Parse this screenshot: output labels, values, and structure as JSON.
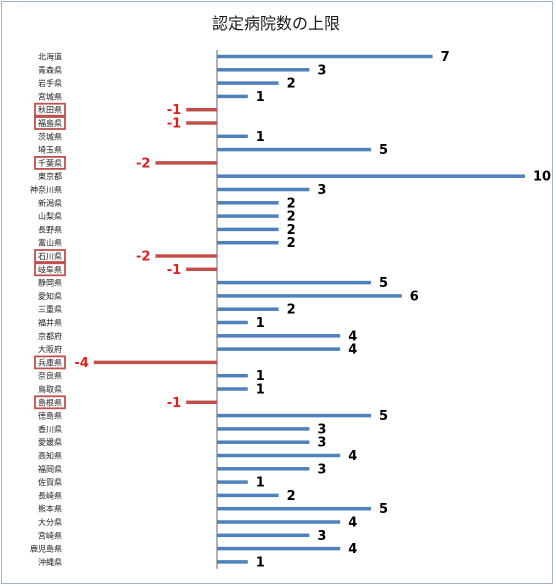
{
  "chart_data": {
    "type": "bar",
    "orientation": "horizontal",
    "title": "認定病院数の上限",
    "categories": [
      "北海道",
      "青森県",
      "岩手県",
      "宮城県",
      "秋田県",
      "福島県",
      "茨城県",
      "埼玉県",
      "千葉県",
      "東京都",
      "神奈川県",
      "新潟県",
      "山梨県",
      "長野県",
      "富山県",
      "石川県",
      "岐阜県",
      "静岡県",
      "愛知県",
      "三重県",
      "福井県",
      "京都府",
      "大阪府",
      "兵庫県",
      "奈良県",
      "鳥取県",
      "島根県",
      "徳島県",
      "香川県",
      "愛媛県",
      "高知県",
      "福岡県",
      "佐賀県",
      "長崎県",
      "熊本県",
      "大分県",
      "宮崎県",
      "鹿児島県",
      "沖縄県"
    ],
    "values": [
      7,
      3,
      2,
      1,
      -1,
      -1,
      1,
      5,
      -2,
      10,
      3,
      2,
      2,
      2,
      2,
      -2,
      -1,
      5,
      6,
      2,
      1,
      4,
      4,
      -4,
      1,
      1,
      -1,
      5,
      3,
      3,
      4,
      3,
      1,
      2,
      5,
      4,
      3,
      4,
      1
    ],
    "value_labels": [
      "7",
      "3",
      "2",
      "1",
      "-1",
      "-1",
      "1",
      "5",
      "-2",
      "10",
      "3",
      "2",
      "2",
      "2",
      "2",
      "-2",
      "-1",
      "5",
      "6",
      "2",
      "1",
      "4",
      "4",
      "-4",
      "1",
      "1",
      "-1",
      "5",
      "3",
      "3",
      "4",
      "3",
      "1",
      "2",
      "5",
      "4",
      "3",
      "4",
      "1"
    ],
    "highlighted_categories": [
      "秋田県",
      "福島県",
      "千葉県",
      "石川県",
      "岐阜県",
      "兵庫県",
      "島根県"
    ],
    "xlim": [
      -4,
      10
    ],
    "grid": false,
    "colors": {
      "positive": "#4f81bd",
      "negative": "#c0504d",
      "negative_label": "#e02020",
      "positive_label": "#000000",
      "highlight_box": "#c0504d",
      "axis": "#7f7f7f"
    }
  }
}
